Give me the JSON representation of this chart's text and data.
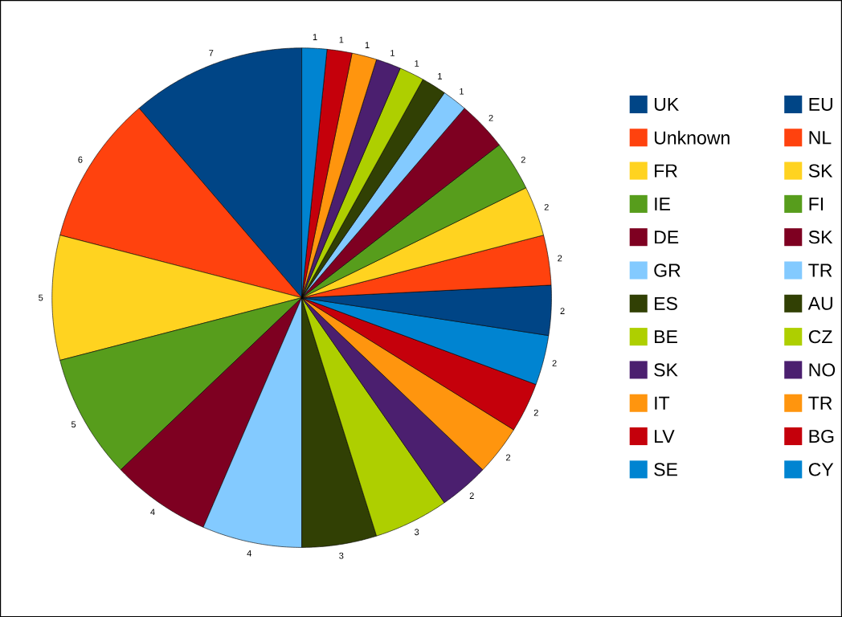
{
  "chart_data": {
    "type": "pie",
    "categories": [
      "UK",
      "Unknown",
      "FR",
      "IE",
      "DE",
      "GR",
      "ES",
      "BE",
      "SK",
      "IT",
      "LV",
      "SE",
      "EU",
      "NL",
      "SK",
      "FI",
      "SK",
      "TR",
      "AU",
      "CZ",
      "NO",
      "TR",
      "BG",
      "CY"
    ],
    "values": [
      7,
      6,
      5,
      5,
      4,
      4,
      3,
      3,
      2,
      2,
      2,
      2,
      2,
      2,
      2,
      2,
      2,
      1,
      1,
      1,
      1,
      1,
      1,
      1
    ],
    "colors": [
      "#004586",
      "#ff420e",
      "#ffd320",
      "#579d1c",
      "#7e0021",
      "#83caff",
      "#314004",
      "#aecf00",
      "#4b1f6f",
      "#ff950e",
      "#c5000b",
      "#0084d1",
      "#004586",
      "#ff420e",
      "#ffd320",
      "#579d1c",
      "#7e0021",
      "#83caff",
      "#314004",
      "#aecf00",
      "#4b1f6f",
      "#ff950e",
      "#c5000b",
      "#0084d1"
    ],
    "data_labels": true,
    "legend": "right"
  }
}
